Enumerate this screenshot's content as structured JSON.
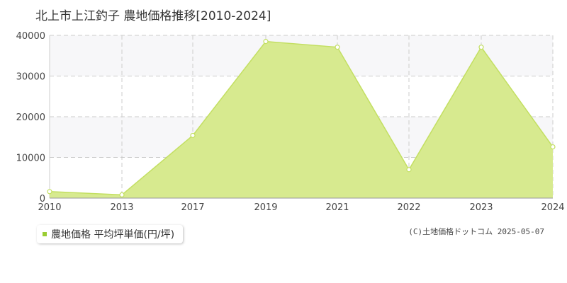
{
  "title": "北上市上江釣子 農地価格推移[2010-2024]",
  "legend_label": "農地価格 平均坪単価(円/坪)",
  "copyright": "(C)土地価格ドットコム 2025-05-07",
  "colors": {
    "fill": "#d7ea8f",
    "line": "#c3df62",
    "accent": "#9acd32",
    "band": "#f7f7f9"
  },
  "chart_data": {
    "type": "area",
    "title": "北上市上江釣子 農地価格推移[2010-2024]",
    "categories": [
      "2010",
      "2013",
      "2017",
      "2019",
      "2021",
      "2022",
      "2023",
      "2024"
    ],
    "series": [
      {
        "name": "農地価格 平均坪単価(円/坪)",
        "values": [
          1600,
          800,
          15400,
          38500,
          37100,
          7000,
          37100,
          12600
        ]
      }
    ],
    "yticks": [
      0,
      10000,
      20000,
      30000,
      40000
    ],
    "ylim": [
      0,
      40000
    ],
    "grid": true,
    "legend_position": "bottom-left"
  }
}
